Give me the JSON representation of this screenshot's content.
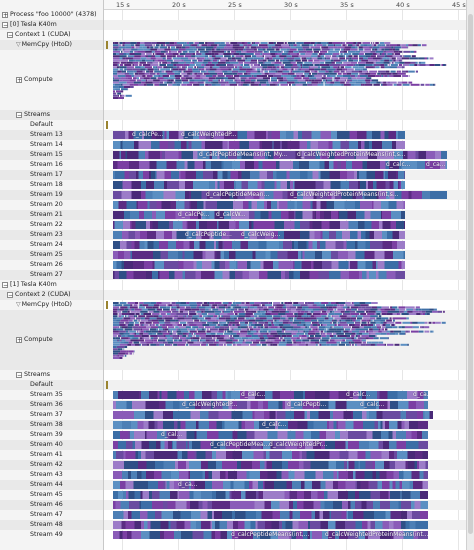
{
  "ruler": {
    "ticks": [
      "15 s",
      "20 s",
      "25 s",
      "30 s",
      "35 s",
      "40 s",
      "45 s"
    ]
  },
  "colors": {
    "kernel_a": "#5b2c83",
    "kernel_b": "#7b3fa3",
    "kernel_c": "#3c6ea6",
    "kernel_d": "#5b8fc2",
    "memcpy": "#9a8430",
    "pane": "#f4f4f4"
  },
  "rows": [
    {
      "kind": "process",
      "toggle": "+",
      "label": "Process \"foo 10000\" (4378)",
      "indent": 0
    },
    {
      "kind": "device",
      "toggle": "−",
      "label": "[0] Tesla K40m",
      "indent": 0
    },
    {
      "kind": "context",
      "toggle": "−",
      "label": "Context 1 (CUDA)",
      "indent": 5
    },
    {
      "kind": "memcpy",
      "label": "MemCpy (HtoD)",
      "indent": 14,
      "filter": "▽",
      "marker": true
    },
    {
      "kind": "compute",
      "toggle": "+",
      "label": "Compute",
      "indent": 14,
      "height": 6,
      "ver": 0
    },
    {
      "kind": "streams",
      "toggle": "−",
      "label": "Streams",
      "indent": 14
    },
    {
      "kind": "stream",
      "label": "Default",
      "indent": 28,
      "marker": true
    },
    {
      "kind": "stream",
      "label": "Stream 13",
      "indent": 28,
      "end": 0.835,
      "seed": 13,
      "labels": [
        {
          "t": "d_calcPe...",
          "x": 0.05
        },
        {
          "t": "d_calcWeightedP...",
          "x": 0.19
        }
      ]
    },
    {
      "kind": "stream",
      "label": "Stream 14",
      "indent": 28,
      "end": 0.835,
      "seed": 14,
      "labels": []
    },
    {
      "kind": "stream",
      "label": "Stream 15",
      "indent": 28,
      "end": 0.955,
      "seed": 15,
      "labels": [
        {
          "t": "d_calcPeptideMeans(int, My...",
          "x": 0.24
        },
        {
          "t": "d_calcWeightedProteinMeans(int,s...",
          "x": 0.52
        }
      ]
    },
    {
      "kind": "stream",
      "label": "Stream 16",
      "indent": 28,
      "end": 0.955,
      "seed": 16,
      "labels": [
        {
          "t": "d_calc...",
          "x": 0.775
        },
        {
          "t": "d_ca...",
          "x": 0.89
        }
      ]
    },
    {
      "kind": "stream",
      "label": "Stream 17",
      "indent": 28,
      "end": 0.835,
      "seed": 17,
      "labels": []
    },
    {
      "kind": "stream",
      "label": "Stream 18",
      "indent": 28,
      "end": 0.835,
      "seed": 18,
      "labels": []
    },
    {
      "kind": "stream",
      "label": "Stream 19",
      "indent": 28,
      "end": 0.955,
      "seed": 19,
      "labels": [
        {
          "t": "d_calcPeptideMean...",
          "x": 0.26
        },
        {
          "t": "d_calcWeightedProteinMeans(int,s...",
          "x": 0.5
        }
      ]
    },
    {
      "kind": "stream",
      "label": "Stream 20",
      "indent": 28,
      "end": 0.835,
      "seed": 20,
      "labels": []
    },
    {
      "kind": "stream",
      "label": "Stream 21",
      "indent": 28,
      "end": 0.835,
      "seed": 21,
      "labels": [
        {
          "t": "d_calcPe...",
          "x": 0.18
        },
        {
          "t": "d_calcW...",
          "x": 0.29
        }
      ]
    },
    {
      "kind": "stream",
      "label": "Stream 22",
      "indent": 28,
      "end": 0.835,
      "seed": 22,
      "labels": []
    },
    {
      "kind": "stream",
      "label": "Stream 23",
      "indent": 28,
      "end": 0.835,
      "seed": 23,
      "labels": [
        {
          "t": "d_calcPeptide...",
          "x": 0.2
        },
        {
          "t": "d_calcWeig...",
          "x": 0.36
        }
      ]
    },
    {
      "kind": "stream",
      "label": "Stream 24",
      "indent": 28,
      "end": 0.835,
      "seed": 24,
      "labels": []
    },
    {
      "kind": "stream",
      "label": "Stream 25",
      "indent": 28,
      "end": 0.835,
      "seed": 25,
      "labels": []
    },
    {
      "kind": "stream",
      "label": "Stream 26",
      "indent": 28,
      "end": 0.835,
      "seed": 26,
      "labels": []
    },
    {
      "kind": "stream",
      "label": "Stream 27",
      "indent": 28,
      "end": 0.835,
      "seed": 27,
      "labels": []
    },
    {
      "kind": "device",
      "toggle": "−",
      "label": "[1] Tesla K40m",
      "indent": 0
    },
    {
      "kind": "context",
      "toggle": "−",
      "label": "Context 2 (CUDA)",
      "indent": 5
    },
    {
      "kind": "memcpy",
      "label": "MemCpy (HtoD)",
      "indent": 14,
      "filter": "▽",
      "marker": true
    },
    {
      "kind": "compute",
      "toggle": "+",
      "label": "Compute",
      "indent": 14,
      "height": 6,
      "ver": 1
    },
    {
      "kind": "streams",
      "toggle": "−",
      "label": "Streams",
      "indent": 14
    },
    {
      "kind": "stream",
      "label": "Default",
      "indent": 28,
      "marker": true
    },
    {
      "kind": "stream",
      "label": "Stream 35",
      "indent": 28,
      "end": 0.9,
      "seed": 35,
      "labels": [
        {
          "t": "d_calc...",
          "x": 0.36
        },
        {
          "t": "d_calc...",
          "x": 0.66
        },
        {
          "t": "d_ca...",
          "x": 0.85
        }
      ]
    },
    {
      "kind": "stream",
      "label": "Stream 36",
      "indent": 28,
      "end": 0.9,
      "seed": 36,
      "labels": [
        {
          "t": "d_calcWeightedP...",
          "x": 0.19
        },
        {
          "t": "d_calcPepti...",
          "x": 0.49
        },
        {
          "t": "d_calc...",
          "x": 0.7
        }
      ]
    },
    {
      "kind": "stream",
      "label": "Stream 37",
      "indent": 28,
      "end": 0.915,
      "seed": 37,
      "labels": []
    },
    {
      "kind": "stream",
      "label": "Stream 38",
      "indent": 28,
      "end": 0.9,
      "seed": 38,
      "labels": [
        {
          "t": "d_calc...",
          "x": 0.42
        }
      ]
    },
    {
      "kind": "stream",
      "label": "Stream 39",
      "indent": 28,
      "end": 0.9,
      "seed": 39,
      "labels": [
        {
          "t": "d_cal...",
          "x": 0.13
        }
      ]
    },
    {
      "kind": "stream",
      "label": "Stream 40",
      "indent": 28,
      "end": 0.9,
      "seed": 40,
      "labels": [
        {
          "t": "d_calcPeptideMea...",
          "x": 0.27
        },
        {
          "t": "d_calcWeightedPr...",
          "x": 0.44
        }
      ]
    },
    {
      "kind": "stream",
      "label": "Stream 41",
      "indent": 28,
      "end": 0.9,
      "seed": 41,
      "labels": []
    },
    {
      "kind": "stream",
      "label": "Stream 42",
      "indent": 28,
      "end": 0.9,
      "seed": 42,
      "labels": []
    },
    {
      "kind": "stream",
      "label": "Stream 43",
      "indent": 28,
      "end": 0.9,
      "seed": 43,
      "labels": []
    },
    {
      "kind": "stream",
      "label": "Stream 44",
      "indent": 28,
      "end": 0.9,
      "seed": 44,
      "labels": [
        {
          "t": "d_ca...",
          "x": 0.18
        }
      ]
    },
    {
      "kind": "stream",
      "label": "Stream 45",
      "indent": 28,
      "end": 0.9,
      "seed": 45,
      "labels": []
    },
    {
      "kind": "stream",
      "label": "Stream 46",
      "indent": 28,
      "end": 0.9,
      "seed": 46,
      "labels": []
    },
    {
      "kind": "stream",
      "label": "Stream 47",
      "indent": 28,
      "end": 0.9,
      "seed": 47,
      "labels": []
    },
    {
      "kind": "stream",
      "label": "Stream 48",
      "indent": 28,
      "end": 0.9,
      "seed": 48,
      "labels": []
    },
    {
      "kind": "stream",
      "label": "Stream 49",
      "indent": 28,
      "end": 0.9,
      "seed": 49,
      "labels": [
        {
          "t": "d_calcPeptideMeans(int,...",
          "x": 0.33
        },
        {
          "t": "d_calcWeightedProteinMeans(int...",
          "x": 0.6
        }
      ]
    }
  ]
}
